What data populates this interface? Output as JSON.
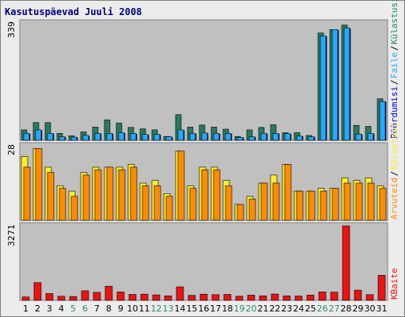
{
  "title": "Kasutuspäevad Juuli 2008",
  "colors": {
    "background": "#c0c0c0",
    "text_blue": "#0000c0",
    "text_green": "#1a8a6a",
    "weekend_day": "#2a8a6a",
    "visits": "#2a7a5a",
    "pages": "#22aaff",
    "files": "#0000cc",
    "hits": "#ffee22",
    "pages2": "#ff8c00",
    "kbytes": "#ee1111"
  },
  "chart_data": [
    {
      "type": "bar",
      "panel": "top",
      "ymax_label": "339",
      "categories": [
        "1",
        "2",
        "3",
        "4",
        "5",
        "6",
        "7",
        "8",
        "9",
        "10",
        "11",
        "12",
        "13",
        "14",
        "15",
        "16",
        "17",
        "18",
        "19",
        "20",
        "21",
        "22",
        "23",
        "24",
        "25",
        "26",
        "27",
        "28",
        "29",
        "30",
        "31"
      ],
      "weekend_categories": [
        "5",
        "6",
        "12",
        "13",
        "19",
        "20",
        "26",
        "27"
      ],
      "ylim": [
        0,
        339
      ],
      "series": [
        {
          "name": "Külastusi",
          "color": "#2a7a5a",
          "values": [
            30,
            51,
            51,
            20,
            13,
            24,
            38,
            59,
            50,
            37,
            33,
            30,
            11,
            74,
            38,
            44,
            38,
            32,
            11,
            30,
            37,
            45,
            22,
            22,
            14,
            310,
            320,
            333,
            43,
            40,
            120
          ]
        },
        {
          "name": "Faile",
          "color": "#22aaff",
          "values": [
            20,
            30,
            20,
            10,
            9,
            14,
            20,
            20,
            22,
            20,
            17,
            17,
            10,
            30,
            20,
            21,
            20,
            20,
            8,
            10,
            20,
            20,
            19,
            12,
            10,
            302,
            320,
            325,
            18,
            20,
            112
          ]
        },
        {
          "name": "Pöördumisi",
          "color": "#0000cc",
          "values": [
            18,
            28,
            18,
            9,
            8,
            12,
            18,
            18,
            20,
            18,
            15,
            15,
            9,
            28,
            18,
            19,
            18,
            18,
            7,
            9,
            18,
            18,
            17,
            11,
            9,
            300,
            318,
            322,
            16,
            18,
            110
          ]
        }
      ],
      "legend": [
        "Pöördumisi",
        "Faile",
        "Külastusi"
      ]
    },
    {
      "type": "bar",
      "panel": "middle",
      "ymax_label": "28",
      "categories": [
        "1",
        "2",
        "3",
        "4",
        "5",
        "6",
        "7",
        "8",
        "9",
        "10",
        "11",
        "12",
        "13",
        "14",
        "15",
        "16",
        "17",
        "18",
        "19",
        "20",
        "21",
        "22",
        "23",
        "24",
        "25",
        "26",
        "27",
        "28",
        "29",
        "30",
        "31"
      ],
      "ylim": [
        0,
        28
      ],
      "series": [
        {
          "name": "Külastusi",
          "color": "#ffee22",
          "values": [
            24,
            27,
            20,
            13,
            11,
            18,
            20,
            20,
            20,
            21,
            14,
            15,
            10,
            26,
            13,
            20,
            20,
            15,
            6,
            9,
            14,
            17,
            21,
            11,
            11,
            12,
            12,
            16,
            15,
            16,
            13
          ]
        },
        {
          "name": "Arvuteid",
          "color": "#ff8c00",
          "values": [
            20,
            27,
            18,
            12,
            9,
            17,
            19,
            20,
            19,
            20,
            13,
            13,
            9,
            26,
            12,
            19,
            19,
            13,
            6,
            8,
            14,
            14,
            21,
            11,
            11,
            11,
            12,
            14,
            14,
            14,
            12
          ]
        }
      ],
      "legend": [
        "Külastusi",
        "Arvuteid"
      ]
    },
    {
      "type": "bar",
      "panel": "bottom",
      "ymax_label": "3271",
      "categories": [
        "1",
        "2",
        "3",
        "4",
        "5",
        "6",
        "7",
        "8",
        "9",
        "10",
        "11",
        "12",
        "13",
        "14",
        "15",
        "16",
        "17",
        "18",
        "19",
        "20",
        "21",
        "22",
        "23",
        "24",
        "25",
        "26",
        "27",
        "28",
        "29",
        "30",
        "31"
      ],
      "ylim": [
        0,
        3271
      ],
      "series": [
        {
          "name": "KBaite",
          "color": "#ee1111",
          "values": [
            150,
            780,
            300,
            180,
            170,
            420,
            350,
            620,
            370,
            260,
            270,
            240,
            200,
            590,
            220,
            270,
            250,
            260,
            180,
            230,
            200,
            280,
            200,
            190,
            230,
            370,
            360,
            3271,
            450,
            250,
            1100
          ]
        }
      ],
      "legend": [
        "KBaite"
      ]
    }
  ],
  "x_ticks": [
    "1",
    "2",
    "3",
    "4",
    "5",
    "6",
    "7",
    "8",
    "9",
    "10",
    "11",
    "12",
    "13",
    "14",
    "15",
    "16",
    "17",
    "18",
    "19",
    "20",
    "21",
    "22",
    "23",
    "24",
    "25",
    "26",
    "27",
    "28",
    "29",
    "30",
    "31"
  ]
}
